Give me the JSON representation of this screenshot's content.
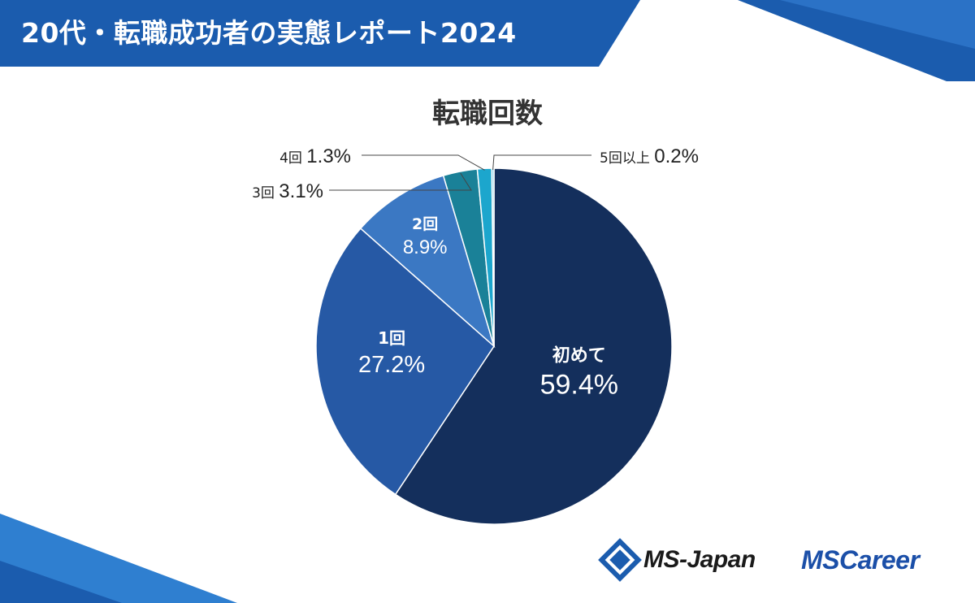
{
  "header": {
    "title": "20代・転職成功者の実態レポート2024"
  },
  "chart_data": {
    "type": "pie",
    "title": "転職回数",
    "start": "top",
    "direction": "clockwise",
    "slices": [
      {
        "label": "初めて",
        "value": 59.4,
        "display": "59.4%",
        "color": "#142f5c"
      },
      {
        "label": "1回",
        "value": 27.2,
        "display": "27.2%",
        "color": "#2659a5"
      },
      {
        "label": "2回",
        "value": 8.9,
        "display": "8.9%",
        "color": "#3b78c3"
      },
      {
        "label": "3回",
        "value": 3.1,
        "display": "3.1%",
        "color": "#1a8198"
      },
      {
        "label": "4回",
        "value": 1.3,
        "display": "1.3%",
        "color": "#1ca6cd"
      },
      {
        "label": "5回以上",
        "value": 0.2,
        "display": "0.2%",
        "color": "#8fd2ea"
      }
    ]
  },
  "logos": {
    "ms_japan": "MS-Japan",
    "ms_career": "MSCareer"
  }
}
